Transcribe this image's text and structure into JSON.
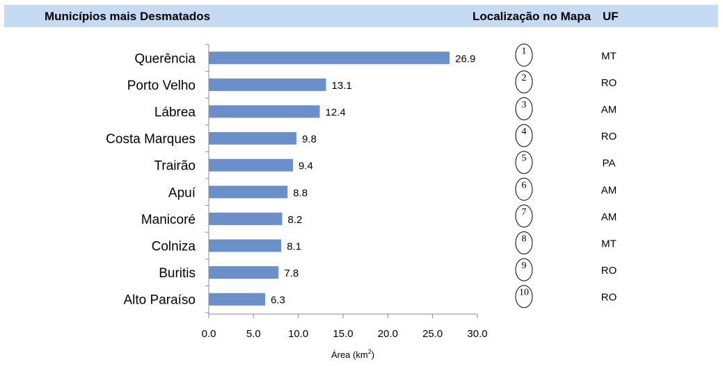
{
  "header": {
    "left_title": "Municípios mais Desmatados",
    "map_title": "Localização no Mapa",
    "uf_title": "UF"
  },
  "chart_data": {
    "type": "bar",
    "orientation": "horizontal",
    "categories": [
      "Querência",
      "Porto Velho",
      "Lábrea",
      "Costa Marques",
      "Trairão",
      "Apuí",
      "Manicoré",
      "Colniza",
      "Buritis",
      "Alto Paraíso"
    ],
    "values": [
      26.9,
      13.1,
      12.4,
      9.8,
      9.4,
      8.8,
      8.2,
      8.1,
      7.8,
      6.3
    ],
    "value_labels": [
      "26.9",
      "13.1",
      "12.4",
      "9.8",
      "9.4",
      "8.8",
      "8.2",
      "8.1",
      "7.8",
      "6.3"
    ],
    "xlabel": "Área (km²)",
    "xlabel_main": "Área (km",
    "xlabel_sup": "2",
    "xlabel_end": ")",
    "xlim": [
      0,
      30
    ],
    "xticks": [
      "0.0",
      "5.0",
      "10.0",
      "15.0",
      "20.0",
      "25.0",
      "30.0"
    ],
    "bar_color": "#6b8fc9",
    "grid": false
  },
  "map_locations": [
    "1",
    "2",
    "3",
    "4",
    "5",
    "6",
    "7",
    "8",
    "9",
    "10"
  ],
  "uf": [
    "MT",
    "RO",
    "AM",
    "RO",
    "PA",
    "AM",
    "AM",
    "MT",
    "RO",
    "RO"
  ],
  "colors": {
    "header_bg": "#c5daf3",
    "bar": "#6b8fc9"
  }
}
